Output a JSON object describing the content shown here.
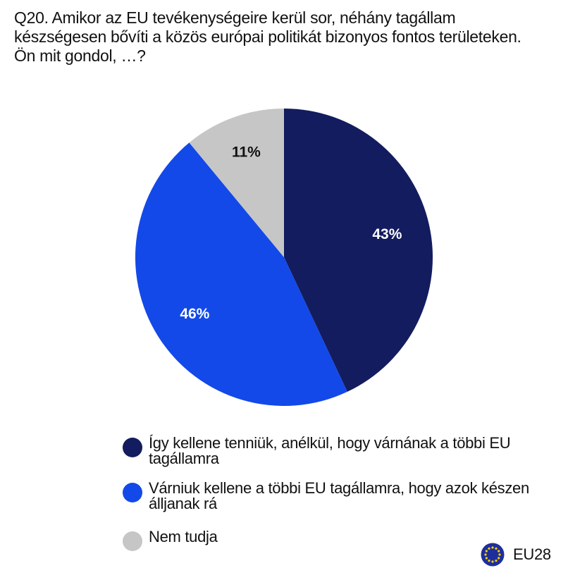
{
  "question": {
    "lines": [
      "Q20. Amikor az EU tevékenységeire kerül sor, néhány tagállam",
      "készségesen bővíti a közös európai politikát bizonyos fontos területeken.",
      "Ön mit gondol, …?"
    ]
  },
  "chart_data": {
    "type": "pie",
    "title": "",
    "slices": [
      {
        "label": "Így kellene tenniük, anélkül, hogy várnának a többi EU tagállamra",
        "value": 43,
        "display": "43%",
        "color": "#131c5e",
        "label_color": "#ffffff"
      },
      {
        "label": "Várniuk kellene a többi EU tagállamra, hogy azok készen álljanak rá",
        "value": 46,
        "display": "46%",
        "color": "#1349e8",
        "label_color": "#ffffff"
      },
      {
        "label": "Nem tudja",
        "value": 11,
        "display": "11%",
        "color": "#c6c6c6",
        "label_color": "#111111"
      }
    ],
    "start": "12 o'clock",
    "direction": "clockwise",
    "legend_position": "bottom"
  },
  "legend": {
    "items": [
      {
        "text": "Így kellene tenniük, anélkül, hogy várnának a többi EU\ntagállamra",
        "color": "#131c5e"
      },
      {
        "text": "Várniuk kellene a többi EU tagállamra, hogy azok készen\nálljanak rá",
        "color": "#1349e8"
      },
      {
        "text": "Nem tudja",
        "color": "#c6c6c6"
      }
    ]
  },
  "region": {
    "label": "EU28",
    "icon": "eu-flag-icon",
    "flag_color": "#1f2e9c",
    "star_color": "#f2d000"
  }
}
